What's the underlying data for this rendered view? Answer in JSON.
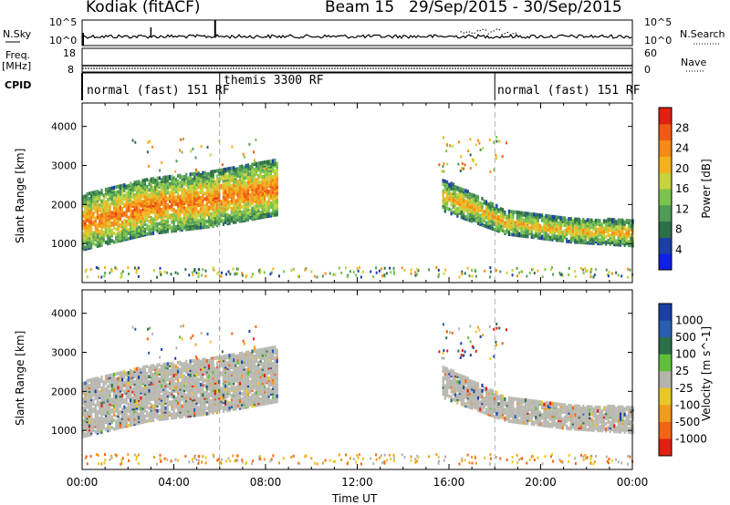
{
  "header": {
    "station": "Kodiak (fitACF)",
    "beam": "Beam 15",
    "daterange": "29/Sep/2015 - 30/Sep/2015"
  },
  "aux": {
    "nsky_label": "N.Sky",
    "nsearch_label": "N.Search",
    "noise_ticks_left": [
      "10^5",
      "10^0"
    ],
    "noise_ticks_right": [
      "10^5",
      "10^0"
    ],
    "freq_label": "Freq.",
    "freq_unit": "[MHz]",
    "freq_ticks": [
      "18",
      "8"
    ],
    "nave_label": "Nave",
    "nave_ticks": [
      "60",
      "0"
    ],
    "cpid_label": "CPID",
    "modes": [
      {
        "label": "normal (fast) 151 RF",
        "start_hour": 0,
        "end_hour": 6
      },
      {
        "label": "themis 3300 RF",
        "start_hour": 6,
        "end_hour": 18
      },
      {
        "label": "normal (fast) 151 RF",
        "start_hour": 18,
        "end_hour": 24
      }
    ]
  },
  "colors": {
    "power_scale": [
      "#1020e8",
      "#1b3fa6",
      "#2d6f48",
      "#4f9a55",
      "#7cc34e",
      "#c7d23c",
      "#f5b21e",
      "#f58a16",
      "#f05a12",
      "#e02010"
    ],
    "velocity_scale": [
      "#1b3fa6",
      "#2a5db0",
      "#2d6f48",
      "#5fbf3a",
      "#b4b4ac",
      "#e8c826",
      "#f29b1c",
      "#f26514",
      "#e02010"
    ],
    "ground_scatter": "#b9b9b1"
  },
  "chart_data": [
    {
      "type": "heatmap",
      "panel": "power",
      "ylabel": "Slant Range [km]",
      "ylim": [
        0,
        4600
      ],
      "yticks": [
        "1000",
        "2000",
        "3000",
        "4000"
      ],
      "xlim_hours": [
        0,
        24
      ],
      "colorbar_label": "Power [dB]",
      "colorbar_ticks": [
        "4",
        "8",
        "12",
        "16",
        "20",
        "24",
        "28"
      ],
      "colorbar_range": [
        0,
        32
      ],
      "scatter_bands": [
        {
          "start_hour": 0.0,
          "end_hour": 8.5,
          "range_low_km": [
            800,
            1200,
            1400,
            1700
          ],
          "range_high_km": [
            2200,
            2600,
            2800,
            3100
          ],
          "peak_db": 26
        },
        {
          "start_hour": 15.7,
          "end_hour": 24.0,
          "range_low_km": [
            1800,
            1200,
            1000,
            900
          ],
          "range_high_km": [
            2600,
            1800,
            1600,
            1550
          ],
          "peak_db": 22
        }
      ]
    },
    {
      "type": "heatmap",
      "panel": "velocity",
      "ylabel": "Slant Range [km]",
      "ylim": [
        0,
        4600
      ],
      "yticks": [
        "1000",
        "2000",
        "3000",
        "4000"
      ],
      "xlim_hours": [
        0,
        24
      ],
      "colorbar_label": "Velocity [m s^-1]",
      "colorbar_ticks": [
        "1000",
        "500",
        "100",
        "25",
        "-25",
        "-100",
        "-500",
        "-1000"
      ],
      "xticks": [
        "00:00",
        "04:00",
        "08:00",
        "12:00",
        "16:00",
        "20:00",
        "00:00"
      ],
      "xlabel": "Time UT"
    }
  ]
}
